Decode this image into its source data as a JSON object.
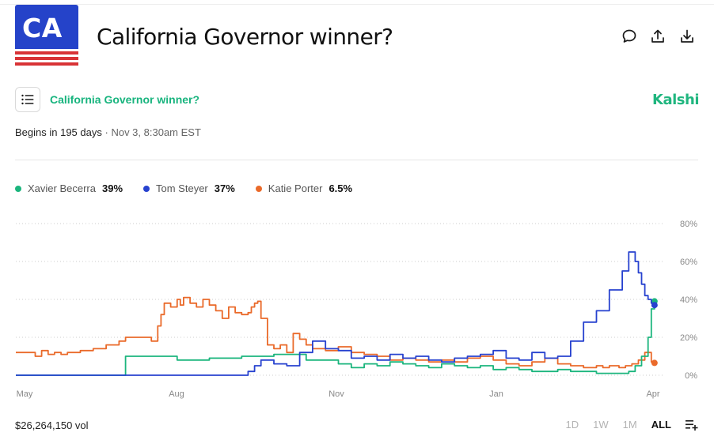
{
  "header": {
    "logo_text": "CA",
    "title": "California Governor winner?",
    "icons": [
      "comment-icon",
      "share-icon",
      "download-icon"
    ]
  },
  "subheader": {
    "menu_icon": "list-icon",
    "market_title": "California Governor winner?",
    "brand": "Kalshi"
  },
  "status": {
    "begins": "Begins in 195 days",
    "separator": "·",
    "date": "Nov 3, 8:30am EST"
  },
  "legend": [
    {
      "name": "Xavier Becerra",
      "pct": "39%",
      "color": "#1bb57d"
    },
    {
      "name": "Tom Steyer",
      "pct": "37%",
      "color": "#2742cf"
    },
    {
      "name": "Katie Porter",
      "pct": "6.5%",
      "color": "#ea6a2a"
    }
  ],
  "footer": {
    "volume": "$26,264,150 vol",
    "ranges": [
      "1D",
      "1W",
      "1M",
      "ALL"
    ],
    "active_range": "ALL",
    "add_icon": "playlist-add-icon"
  },
  "chart_data": {
    "type": "line",
    "ylim": [
      0,
      80
    ],
    "y_ticks": [
      "80%",
      "60%",
      "40%",
      "20%",
      "0%"
    ],
    "x_ticks": [
      "May",
      "Aug",
      "Nov",
      "Jan",
      "Apr"
    ],
    "grid": true,
    "legend_position": "top-left",
    "series": [
      {
        "name": "Katie Porter",
        "color": "#ea6a2a",
        "x": [
          0,
          0.02,
          0.03,
          0.04,
          0.05,
          0.06,
          0.07,
          0.08,
          0.09,
          0.1,
          0.11,
          0.12,
          0.14,
          0.16,
          0.17,
          0.2,
          0.21,
          0.22,
          0.225,
          0.23,
          0.24,
          0.25,
          0.255,
          0.26,
          0.27,
          0.28,
          0.29,
          0.3,
          0.31,
          0.32,
          0.33,
          0.34,
          0.35,
          0.36,
          0.365,
          0.37,
          0.375,
          0.38,
          0.39,
          0.4,
          0.41,
          0.42,
          0.43,
          0.44,
          0.45,
          0.46,
          0.48,
          0.5,
          0.52,
          0.54,
          0.56,
          0.58,
          0.6,
          0.62,
          0.64,
          0.66,
          0.68,
          0.7,
          0.72,
          0.74,
          0.76,
          0.78,
          0.8,
          0.82,
          0.84,
          0.86,
          0.88,
          0.9,
          0.91,
          0.92,
          0.935,
          0.945,
          0.955,
          0.965,
          0.975,
          0.985,
          0.99
        ],
        "values": [
          12,
          12,
          10,
          13,
          11,
          12,
          11,
          12,
          12,
          13,
          13,
          14,
          16,
          18,
          20,
          20,
          18,
          26,
          32,
          38,
          36,
          40,
          37,
          41,
          38,
          36,
          40,
          37,
          34,
          30,
          36,
          33,
          32,
          33,
          36,
          38,
          39,
          30,
          16,
          14,
          16,
          12,
          22,
          19,
          16,
          14,
          13,
          15,
          12,
          11,
          10,
          8,
          9,
          8,
          7,
          8,
          7,
          9,
          10,
          8,
          6,
          5,
          7,
          9,
          6,
          5,
          4,
          5,
          4,
          5,
          4,
          5,
          6,
          8,
          12,
          7,
          6.5
        ]
      },
      {
        "name": "Xavier Becerra",
        "color": "#1bb57d",
        "x": [
          0,
          0.05,
          0.1,
          0.15,
          0.16,
          0.165,
          0.17,
          0.2,
          0.25,
          0.3,
          0.35,
          0.4,
          0.45,
          0.5,
          0.52,
          0.54,
          0.56,
          0.58,
          0.6,
          0.62,
          0.64,
          0.66,
          0.68,
          0.7,
          0.72,
          0.74,
          0.76,
          0.78,
          0.8,
          0.82,
          0.84,
          0.86,
          0.88,
          0.9,
          0.92,
          0.935,
          0.95,
          0.96,
          0.97,
          0.98,
          0.985,
          0.99
        ],
        "values": [
          0,
          0,
          0,
          0,
          0,
          0,
          10,
          10,
          8,
          9,
          10,
          11,
          8,
          6,
          4,
          6,
          5,
          7,
          6,
          5,
          4,
          6,
          5,
          4,
          5,
          3,
          4,
          3,
          2,
          2,
          3,
          2,
          2,
          1,
          1,
          1,
          2,
          5,
          10,
          20,
          35,
          39
        ]
      },
      {
        "name": "Tom Steyer",
        "color": "#2742cf",
        "x": [
          0,
          0.1,
          0.2,
          0.3,
          0.35,
          0.36,
          0.37,
          0.38,
          0.4,
          0.42,
          0.44,
          0.46,
          0.48,
          0.5,
          0.52,
          0.54,
          0.56,
          0.58,
          0.6,
          0.62,
          0.64,
          0.66,
          0.68,
          0.7,
          0.72,
          0.74,
          0.76,
          0.78,
          0.8,
          0.82,
          0.84,
          0.86,
          0.88,
          0.9,
          0.92,
          0.94,
          0.95,
          0.96,
          0.965,
          0.97,
          0.975,
          0.98,
          0.985,
          0.99
        ],
        "values": [
          0,
          0,
          0,
          0,
          0,
          2,
          5,
          8,
          6,
          5,
          12,
          18,
          14,
          13,
          9,
          10,
          8,
          11,
          9,
          10,
          8,
          7,
          9,
          10,
          11,
          13,
          9,
          8,
          12,
          9,
          10,
          18,
          28,
          34,
          45,
          55,
          65,
          60,
          54,
          48,
          42,
          40,
          38,
          37
        ]
      }
    ]
  }
}
